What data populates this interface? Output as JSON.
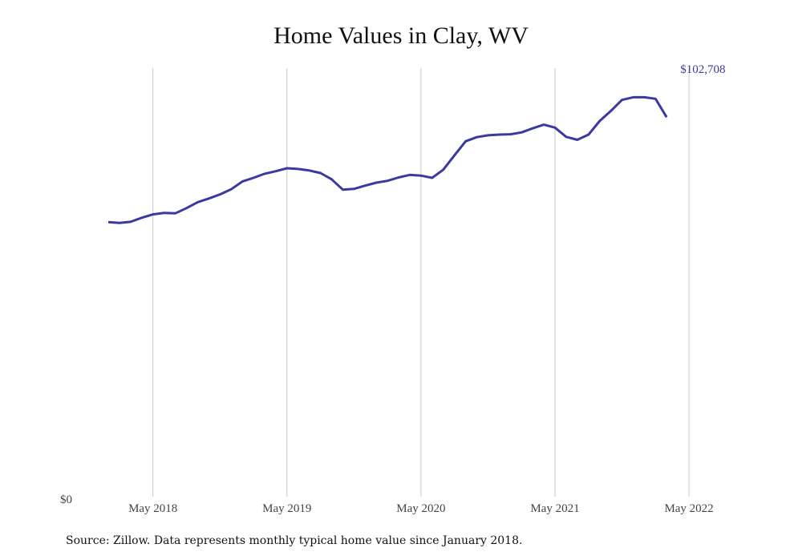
{
  "chart_data": {
    "type": "line",
    "title": "Home Values in Clay, WV",
    "xlabel": "",
    "ylabel": "",
    "x": [
      "2018-01",
      "2018-02",
      "2018-03",
      "2018-04",
      "2018-05",
      "2018-06",
      "2018-07",
      "2018-08",
      "2018-09",
      "2018-10",
      "2018-11",
      "2018-12",
      "2019-01",
      "2019-02",
      "2019-03",
      "2019-04",
      "2019-05",
      "2019-06",
      "2019-07",
      "2019-08",
      "2019-09",
      "2019-10",
      "2019-11",
      "2019-12",
      "2020-01",
      "2020-02",
      "2020-03",
      "2020-04",
      "2020-05",
      "2020-06",
      "2020-07",
      "2020-08",
      "2020-09",
      "2020-10",
      "2020-11",
      "2020-12",
      "2021-01",
      "2021-02",
      "2021-03",
      "2021-04",
      "2021-05",
      "2021-06",
      "2021-07",
      "2021-08",
      "2021-09",
      "2021-10",
      "2021-11",
      "2021-12",
      "2022-01",
      "2022-02",
      "2022-03",
      "2022-04",
      "2022-05",
      "2022-06"
    ],
    "series": [
      {
        "name": "",
        "values": [
          74300,
          74100,
          74400,
          75500,
          76400,
          76800,
          76700,
          78100,
          79700,
          80700,
          81800,
          83200,
          85300,
          86300,
          87400,
          88100,
          88900,
          88700,
          88300,
          87600,
          85900,
          83100,
          83300,
          84200,
          85000,
          85500,
          86400,
          87100,
          86900,
          86300,
          88500,
          92400,
          96200,
          97300,
          97800,
          98000,
          98100,
          98600,
          99700,
          100700,
          99900,
          97400,
          96600,
          98000,
          101700,
          104400,
          107400,
          108100,
          108100,
          107700,
          null,
          null,
          null,
          null
        ]
      }
    ],
    "ylim": [
      0,
      116000
    ],
    "xtick_labels": [
      "May 2018",
      "May 2019",
      "May 2020",
      "May 2021",
      "May 2022"
    ],
    "ytick_labels": [
      "$0"
    ],
    "end_value_label": "$102,708",
    "grid": "vertical",
    "line_color": "#3b3aa0",
    "source": "Source: Zillow. Data represents monthly typical home value since January 2018."
  }
}
